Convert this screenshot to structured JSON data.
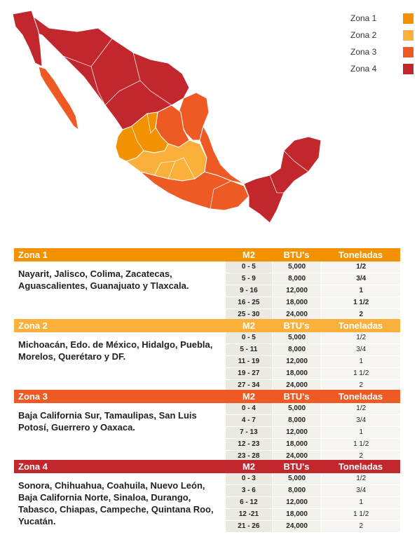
{
  "colors": {
    "zona1": "#f39200",
    "zona2": "#fbb03b",
    "zona3": "#ee5a24",
    "zona4": "#c1272d"
  },
  "legend": [
    {
      "label": "Zona 1",
      "color": "#f39200"
    },
    {
      "label": "Zona 2",
      "color": "#fbb03b"
    },
    {
      "label": "Zona 3",
      "color": "#ee5a24"
    },
    {
      "label": "Zona 4",
      "color": "#c1272d"
    }
  ],
  "columns": {
    "m2": "M2",
    "btu": "BTU's",
    "ton": "Toneladas"
  },
  "zones": [
    {
      "name": "Zona 1",
      "states": "Nayarit, Jalisco, Colima, Zacatecas, Aguascalientes, Guanajuato y Tlaxcala.",
      "rows": [
        {
          "m2": "0 - 5",
          "btu": "5,000",
          "ton": "1/2"
        },
        {
          "m2": "5 - 9",
          "btu": "8,000",
          "ton": "3/4"
        },
        {
          "m2": "9 - 16",
          "btu": "12,000",
          "ton": "1"
        },
        {
          "m2": "16 - 25",
          "btu": "18,000",
          "ton": "1 1/2"
        },
        {
          "m2": "25 - 30",
          "btu": "24,000",
          "ton": "2"
        }
      ]
    },
    {
      "name": "Zona 2",
      "states": "Michoacán, Edo. de México, Hidalgo, Puebla, Morelos, Querétaro y DF.",
      "rows": [
        {
          "m2": "0 - 5",
          "btu": "5,000",
          "ton": "1/2"
        },
        {
          "m2": "5 - 11",
          "btu": "8,000",
          "ton": "3/4"
        },
        {
          "m2": "11 - 19",
          "btu": "12,000",
          "ton": "1"
        },
        {
          "m2": "19 - 27",
          "btu": "18,000",
          "ton": "1 1/2"
        },
        {
          "m2": "27 - 34",
          "btu": "24,000",
          "ton": "2"
        }
      ]
    },
    {
      "name": "Zona 3",
      "states": "Baja California Sur, Tamaulipas, San Luis Potosí, Guerrero y Oaxaca.",
      "rows": [
        {
          "m2": "0 - 4",
          "btu": "5,000",
          "ton": "1/2"
        },
        {
          "m2": "4 - 7",
          "btu": "8,000",
          "ton": "3/4"
        },
        {
          "m2": "7 - 13",
          "btu": "12,000",
          "ton": "1"
        },
        {
          "m2": "12 - 23",
          "btu": "18,000",
          "ton": "1 1/2"
        },
        {
          "m2": "23 - 28",
          "btu": "24,000",
          "ton": "2"
        }
      ]
    },
    {
      "name": "Zona 4",
      "states": "Sonora, Chihuahua, Coahuila, Nuevo León, Baja California Norte, Sinaloa, Durango, Tabasco, Chiapas, Campeche, Quintana Roo, Yucatán.",
      "rows": [
        {
          "m2": "0 - 3",
          "btu": "5,000",
          "ton": "1/2"
        },
        {
          "m2": "3 - 6",
          "btu": "8,000",
          "ton": "3/4"
        },
        {
          "m2": "6 - 12",
          "btu": "12,000",
          "ton": "1"
        },
        {
          "m2": "12 -21",
          "btu": "18,000",
          "ton": "1 1/2"
        },
        {
          "m2": "21 - 26",
          "btu": "24,000",
          "ton": "2"
        }
      ]
    }
  ]
}
